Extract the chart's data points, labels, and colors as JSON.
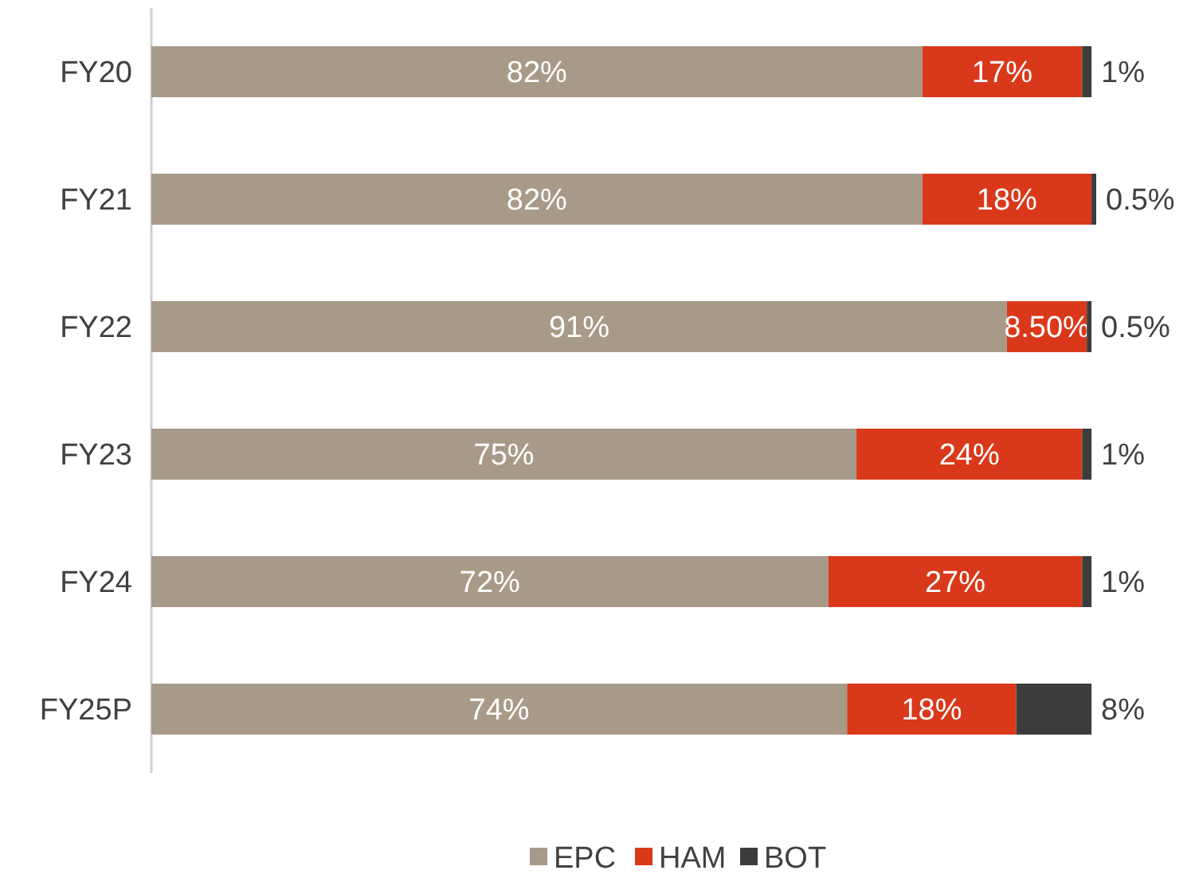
{
  "chart_data": {
    "type": "bar",
    "orientation": "horizontal",
    "stacked": true,
    "categories": [
      "FY20",
      "FY21",
      "FY22",
      "FY23",
      "FY24",
      "FY25P"
    ],
    "series": [
      {
        "name": "EPC",
        "color": "#a89a88",
        "values": [
          82,
          82,
          91,
          75,
          72,
          74
        ],
        "value_labels": [
          "82%",
          "82%",
          "91%",
          "75%",
          "72%",
          "74%"
        ]
      },
      {
        "name": "HAM",
        "color": "#d9391a",
        "values": [
          17,
          18,
          8.5,
          24,
          27,
          18
        ],
        "value_labels": [
          "17%",
          "18%",
          "8.50%",
          "24%",
          "27%",
          "18%"
        ]
      },
      {
        "name": "BOT",
        "color": "#3c3c3c",
        "values": [
          1,
          0.5,
          0.5,
          1,
          1,
          8
        ],
        "value_labels": [
          "1%",
          "0.5%",
          "0.5%",
          "1%",
          "1%",
          "8%"
        ]
      }
    ],
    "legend": "bottom"
  }
}
